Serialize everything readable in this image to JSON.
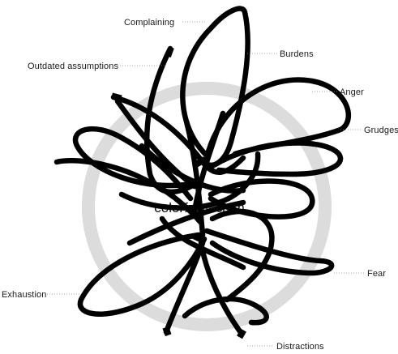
{
  "diagram": {
    "center_label": "colorful & calm",
    "ring_color": "#dcdcdc",
    "line_color": "#000000",
    "labels": {
      "complaining": "Complaining",
      "outdated_assumptions": "Outdated assumptions",
      "burdens": "Burdens",
      "anger": "Anger",
      "grudges": "Grudges",
      "fear": "Fear",
      "exhaustion": "Exhaustion",
      "distractions": "Distractions"
    }
  }
}
